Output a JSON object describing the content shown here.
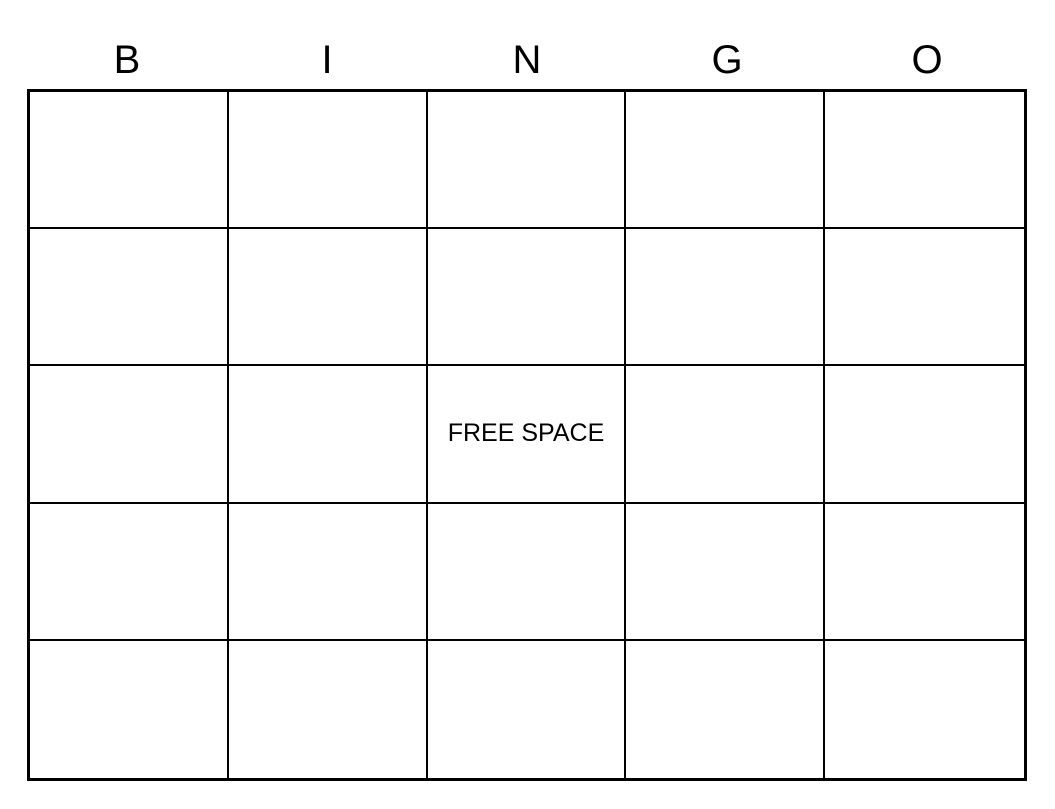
{
  "header": [
    "B",
    "I",
    "N",
    "G",
    "O"
  ],
  "cells": [
    [
      "",
      "",
      "",
      "",
      ""
    ],
    [
      "",
      "",
      "",
      "",
      ""
    ],
    [
      "",
      "",
      "FREE SPACE",
      "",
      ""
    ],
    [
      "",
      "",
      "",
      "",
      ""
    ],
    [
      "",
      "",
      "",
      "",
      ""
    ]
  ]
}
